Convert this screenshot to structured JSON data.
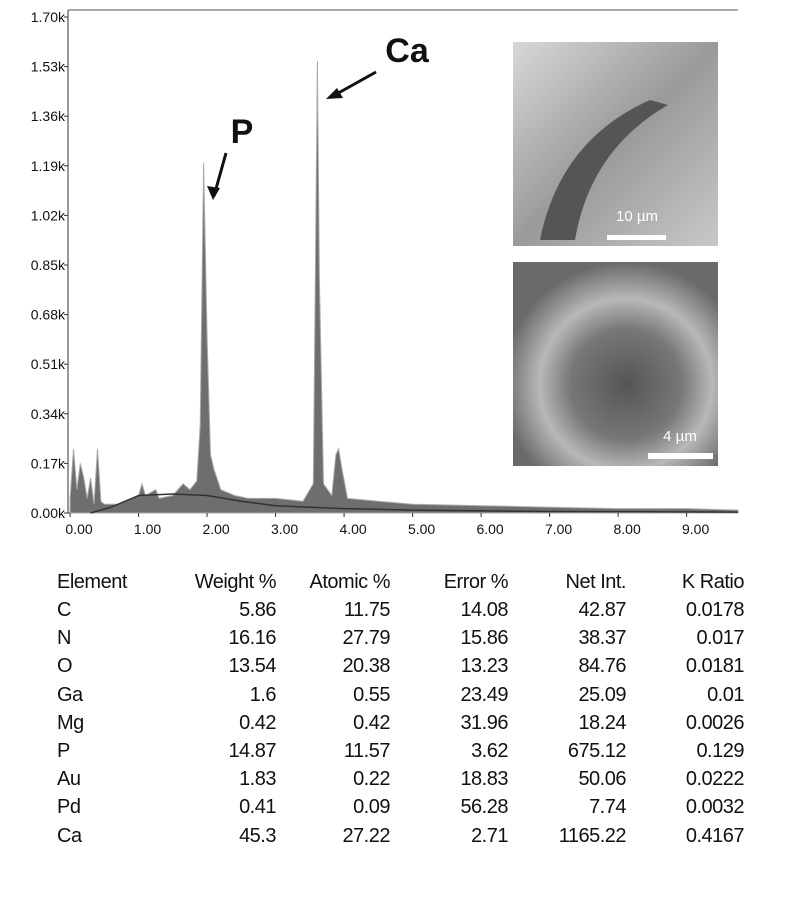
{
  "chart_data": {
    "type": "area",
    "ylim": [
      0,
      1.7
    ],
    "yticks": [
      {
        "value": 0,
        "label": "0.00k"
      },
      {
        "value": 0.17,
        "label": "0.17k"
      },
      {
        "value": 0.34,
        "label": "0.34k"
      },
      {
        "value": 0.51,
        "label": "0.51k"
      },
      {
        "value": 0.68,
        "label": "0.68k"
      },
      {
        "value": 0.85,
        "label": "0.85k"
      },
      {
        "value": 1.02,
        "label": "1.02k"
      },
      {
        "value": 1.19,
        "label": "1.19k"
      },
      {
        "value": 1.36,
        "label": "1.36k"
      },
      {
        "value": 1.53,
        "label": "1.53k"
      },
      {
        "value": 1.7,
        "label": "1.70k"
      }
    ],
    "xlim": [
      -0.03,
      9.75
    ],
    "xticks": [
      {
        "value": 0,
        "label": "0.00"
      },
      {
        "value": 1,
        "label": "1.00"
      },
      {
        "value": 2,
        "label": "2.00"
      },
      {
        "value": 3,
        "label": "3.00"
      },
      {
        "value": 4,
        "label": "4.00"
      },
      {
        "value": 5,
        "label": "5.00"
      },
      {
        "value": 6,
        "label": "6.00"
      },
      {
        "value": 7,
        "label": "7.00"
      },
      {
        "value": 8,
        "label": "8.00"
      },
      {
        "value": 9,
        "label": "9.00"
      }
    ],
    "series": [
      {
        "color": "#6e6e6e",
        "x": [
          0.0,
          0.05,
          0.1,
          0.15,
          0.2,
          0.25,
          0.3,
          0.35,
          0.4,
          0.45,
          0.5,
          0.7,
          0.9,
          1.0,
          1.05,
          1.1,
          1.25,
          1.3,
          1.5,
          1.65,
          1.75,
          1.85,
          1.9,
          1.95,
          2.0,
          2.05,
          2.1,
          2.2,
          2.4,
          2.6,
          3.0,
          3.4,
          3.55,
          3.58,
          3.61,
          3.64,
          3.7,
          3.82,
          3.88,
          3.92,
          3.97,
          4.05,
          4.5,
          5.0,
          6.0,
          7.0,
          8.0,
          9.0,
          9.75
        ],
        "values": [
          0.05,
          0.22,
          0.08,
          0.17,
          0.12,
          0.05,
          0.12,
          0.03,
          0.22,
          0.04,
          0.03,
          0.03,
          0.05,
          0.06,
          0.1,
          0.06,
          0.08,
          0.05,
          0.06,
          0.1,
          0.08,
          0.11,
          0.3,
          1.2,
          0.6,
          0.2,
          0.15,
          0.08,
          0.06,
          0.05,
          0.05,
          0.04,
          0.1,
          0.8,
          1.55,
          0.8,
          0.1,
          0.06,
          0.2,
          0.22,
          0.15,
          0.05,
          0.04,
          0.03,
          0.025,
          0.02,
          0.015,
          0.015,
          0.01
        ]
      },
      {
        "color": "#333333",
        "x": [
          0.3,
          0.6,
          0.8,
          1.0,
          1.5,
          2.0,
          2.5,
          3.0,
          3.5,
          4.0,
          5.0,
          7.0,
          9.75
        ],
        "values": [
          0,
          0.02,
          0.04,
          0.06,
          0.065,
          0.06,
          0.04,
          0.025,
          0.02,
          0.015,
          0.01,
          0.005,
          0.003
        ]
      }
    ],
    "annotations": [
      "P",
      "Ca",
      "10 µm",
      "4 µm"
    ]
  },
  "table": {
    "header": [
      "Element",
      "Weight %",
      "Atomic %",
      "Error %",
      "Net Int.",
      "K Ratio"
    ],
    "rows": [
      [
        "C",
        "5.86",
        "11.75",
        "14.08",
        "42.87",
        "0.0178"
      ],
      [
        "N",
        "16.16",
        "27.79",
        "15.86",
        "38.37",
        "0.017"
      ],
      [
        "O",
        "13.54",
        "20.38",
        "13.23",
        "84.76",
        "0.0181"
      ],
      [
        "Ga",
        "1.6",
        "0.55",
        "23.49",
        "25.09",
        "0.01"
      ],
      [
        "Mg",
        "0.42",
        "0.42",
        "31.96",
        "18.24",
        "0.0026"
      ],
      [
        "P",
        "14.87",
        "11.57",
        "3.62",
        "675.12",
        "0.129"
      ],
      [
        "Au",
        "1.83",
        "0.22",
        "18.83",
        "50.06",
        "0.0222"
      ],
      [
        "Pd",
        "0.41",
        "0.09",
        "56.28",
        "7.74",
        "0.0032"
      ],
      [
        "Ca",
        "45.3",
        "27.22",
        "2.71",
        "1165.22",
        "0.4167"
      ]
    ]
  }
}
